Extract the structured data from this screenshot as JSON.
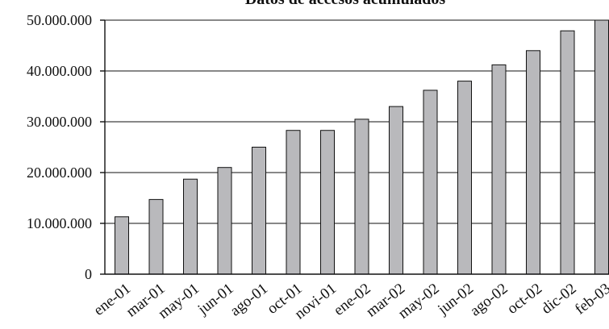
{
  "chart_data": {
    "type": "bar",
    "title": "Datos de accesos acumulados",
    "xlabel": "",
    "ylabel": "",
    "categories": [
      "ene-01",
      "mar-01",
      "may-01",
      "jun-01",
      "ago-01",
      "oct-01",
      "novi-01",
      "ene-02",
      "mar-02",
      "may-02",
      "jun-02",
      "ago-02",
      "oct-02",
      "dic-02",
      "feb-03"
    ],
    "values": [
      11300000,
      14700000,
      18700000,
      21000000,
      25000000,
      28300000,
      28300000,
      30500000,
      33000000,
      36200000,
      38000000,
      41200000,
      44000000,
      47900000,
      50000000
    ],
    "ylim": [
      0,
      50000000
    ],
    "yticks": [
      0,
      10000000,
      20000000,
      30000000,
      40000000,
      50000000
    ],
    "ytick_labels": [
      "0",
      "10.000.000",
      "20.000.000",
      "30.000.000",
      "40.000.000",
      "50.000.000"
    ],
    "grid": true,
    "bar_color": "#b9b9bc",
    "legend": "none"
  }
}
